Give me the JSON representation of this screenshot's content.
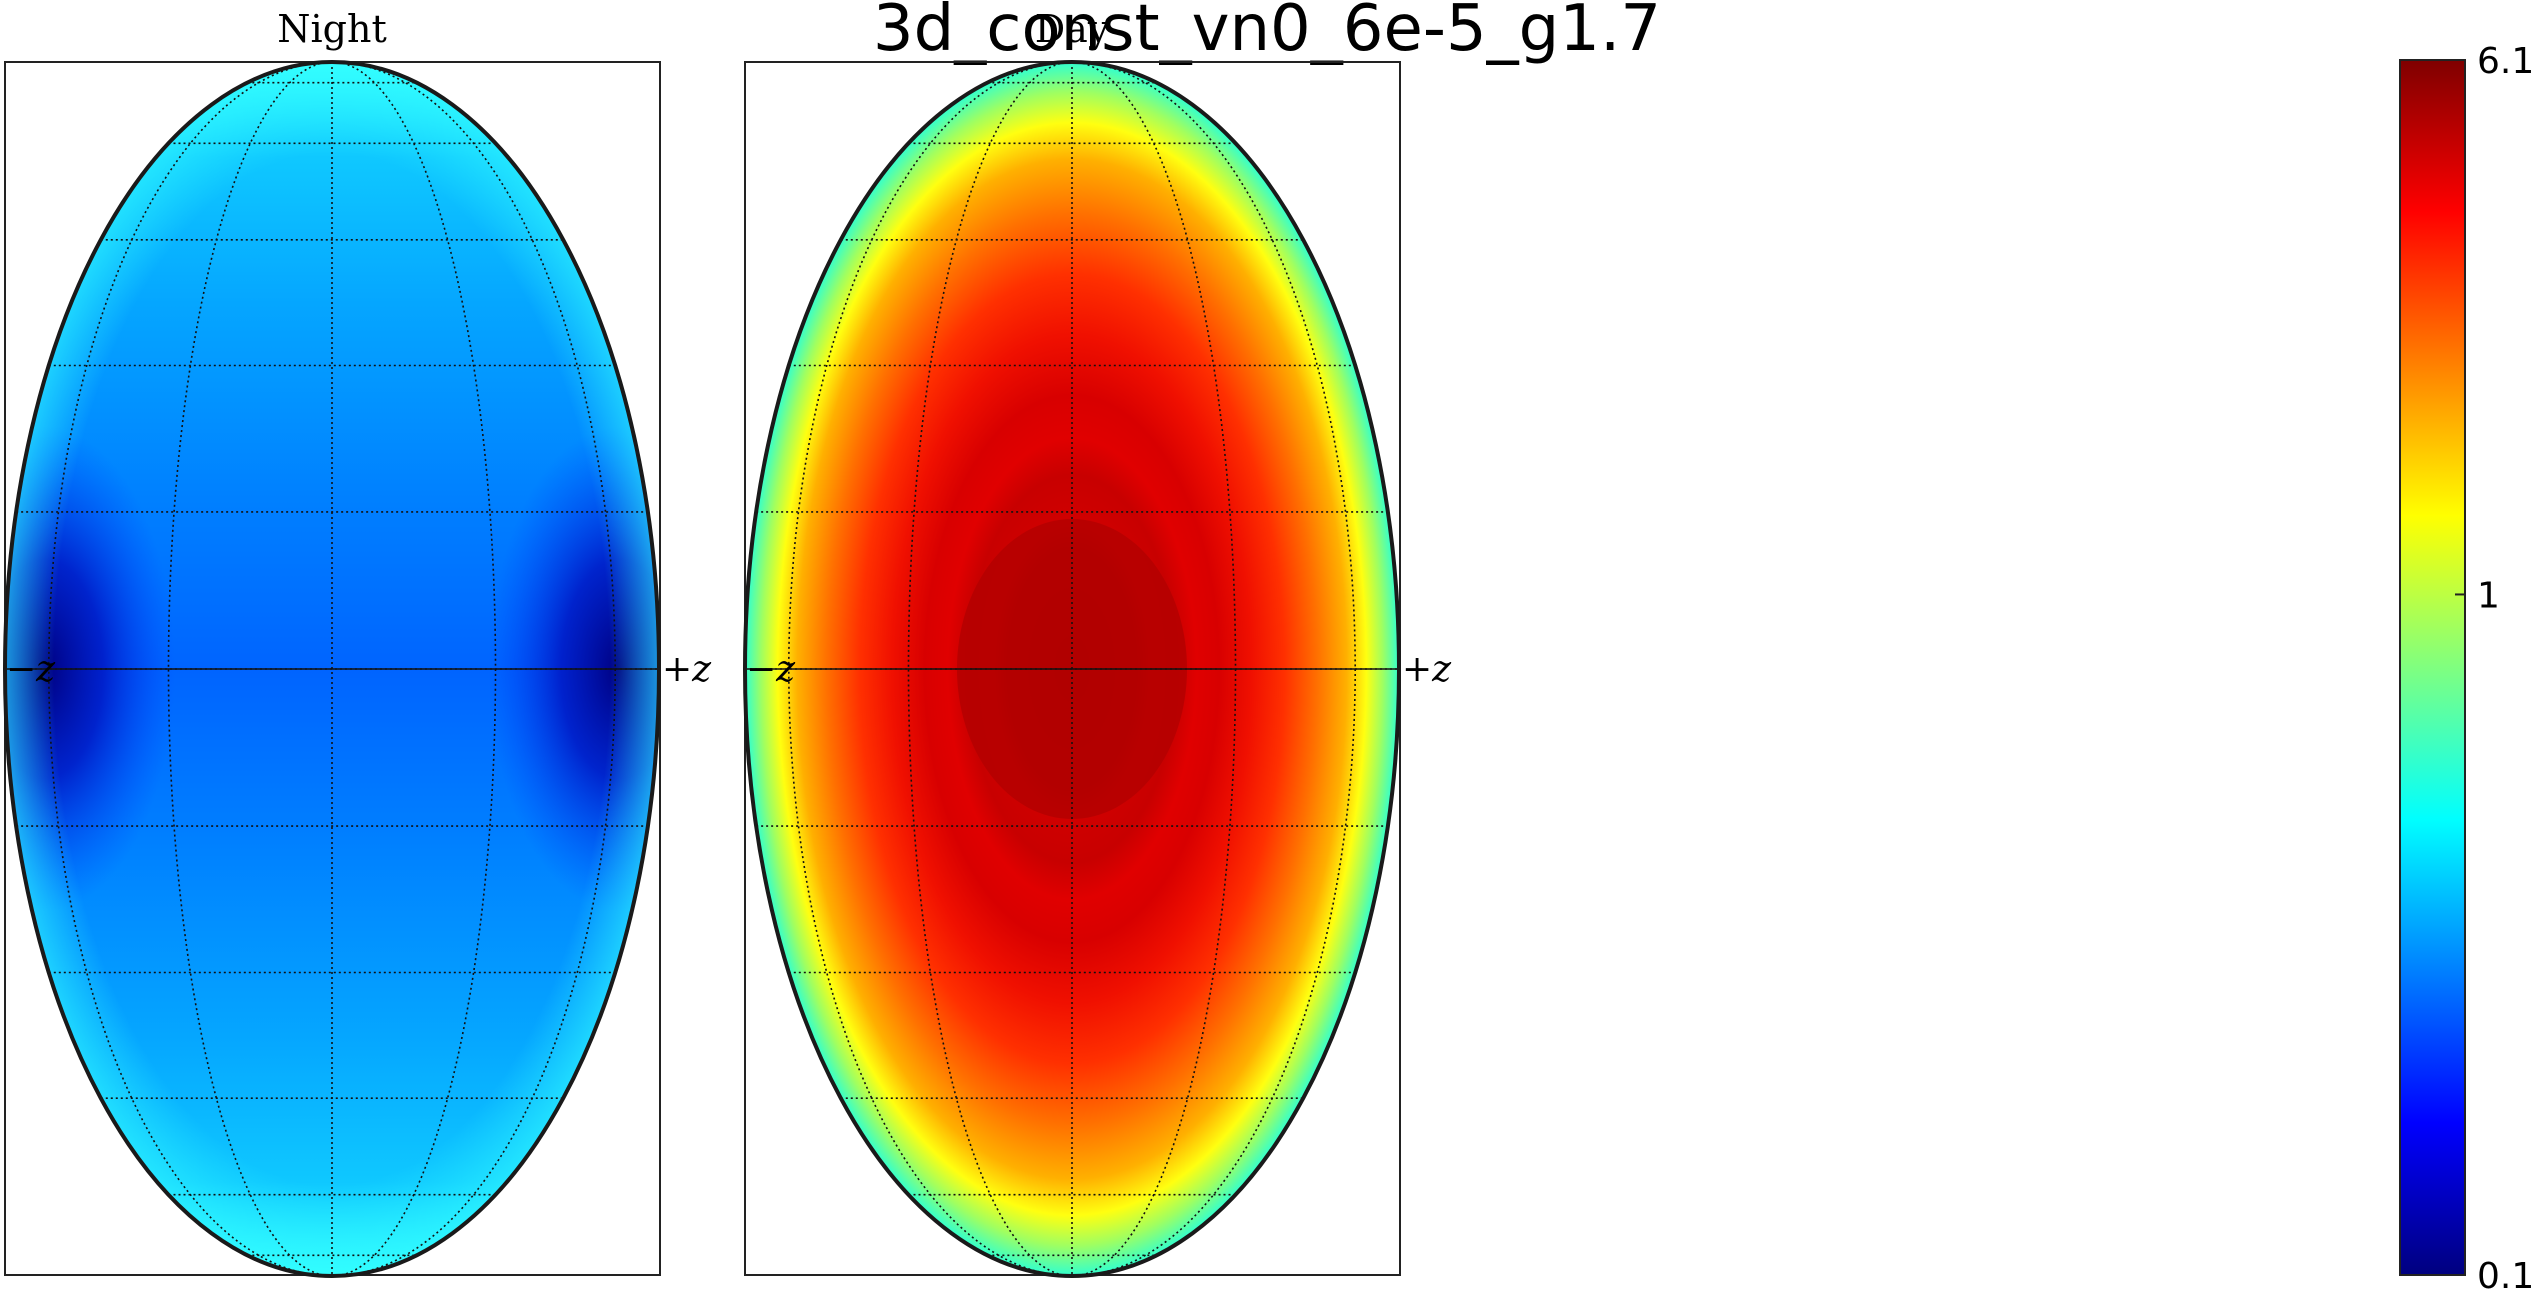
{
  "chart_data": [
    {
      "type": "heatmap",
      "title": "3d_const_vn0_6e-5_g1.7",
      "panels": [
        {
          "label": "Night",
          "left_label": "−z",
          "right_label": "+z",
          "value_description": "mostly low values (blue), darker near the ±z limbs, cyan near poles and rim",
          "center_value": 0.28,
          "limb_value": 0.12,
          "pole_value": 0.5
        },
        {
          "label": "Day",
          "left_label": "−z",
          "right_label": "+z",
          "value_description": "high values (red) with dark-red central disk, fading to yellow/green/cyan at the rim",
          "center_value": 6.0,
          "ring_value": 4.0,
          "rim_value": 0.6
        }
      ],
      "colorbar": {
        "colormap": "jet",
        "scale": "log",
        "min": 0.1,
        "max": 6.1,
        "tick_labels": [
          "6.1",
          "1",
          "0.1"
        ],
        "tick_values": [
          6.1,
          1,
          0.1
        ]
      },
      "grid": true,
      "projection": "orthographic sphere"
    }
  ]
}
